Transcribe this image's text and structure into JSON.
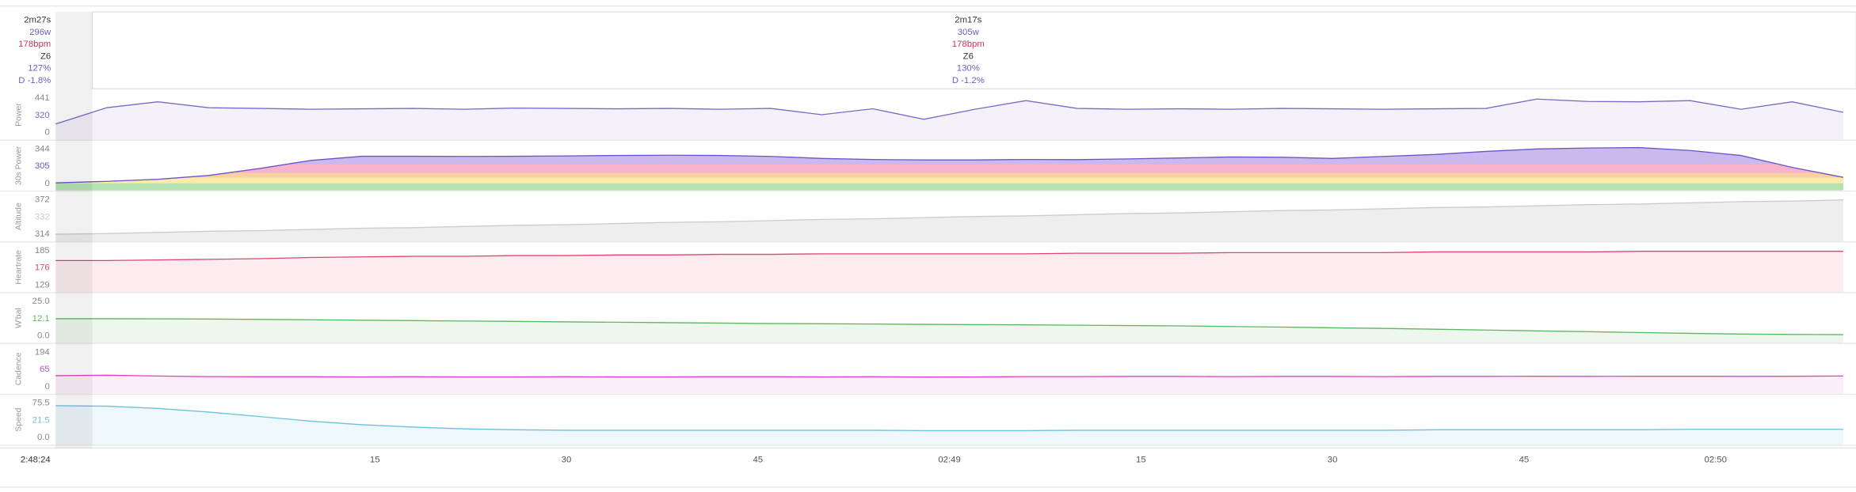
{
  "header": {
    "left": [
      "2m27s",
      "296w",
      "178bpm",
      "Z6",
      "127%",
      "D -1.8%"
    ],
    "center": [
      "2m17s",
      "305w",
      "178bpm",
      "Z6",
      "130%",
      "D -1.2%"
    ],
    "colors": [
      "#333333",
      "#6b5fc0",
      "#d0325a",
      "#333333",
      "#6b5fc0",
      "#6b5fc0"
    ]
  },
  "chart_data": {
    "type": "area",
    "start_label": "2:48:24",
    "x": [
      -10,
      -6,
      -2,
      2,
      6,
      10,
      14,
      18,
      22,
      26,
      30,
      34,
      38,
      42,
      46,
      50,
      54,
      58,
      62,
      66,
      70,
      74,
      78,
      82,
      86,
      90,
      94,
      98,
      102,
      106,
      110,
      114,
      118,
      122,
      126,
      130
    ],
    "xlim": [
      -10,
      131
    ],
    "xticks": [
      15,
      30,
      45,
      {
        "value": 60,
        "label": "02:49"
      },
      {
        "value": 75,
        "label": "15"
      },
      {
        "value": 90,
        "label": "30"
      },
      {
        "value": 105,
        "label": "45"
      },
      {
        "value": 120,
        "label": "02:50"
      }
    ],
    "tracks": [
      {
        "name": "Power",
        "color": "#7b68c8",
        "fill": "#f4f1fb",
        "ylim": [
          0,
          441
        ],
        "yticks": [
          0,
          441
        ],
        "current": 320,
        "values": [
          110,
          320,
          395,
          320,
          310,
          300,
          305,
          310,
          300,
          315,
          310,
          305,
          310,
          300,
          310,
          230,
          305,
          170,
          300,
          410,
          310,
          300,
          305,
          300,
          310,
          305,
          300,
          305,
          310,
          430,
          400,
          395,
          410,
          300,
          395,
          260
        ]
      },
      {
        "name": "30s Power",
        "color": "#6a55c8",
        "fill": "#cbb8ee",
        "ylim": [
          0,
          344
        ],
        "yticks": [
          0,
          344
        ],
        "current": 305,
        "zones": [
          "#b5e3b0",
          "#fde9a8",
          "#fbd0a0",
          "#f5b4cc"
        ],
        "values": [
          5,
          20,
          40,
          80,
          150,
          230,
          272,
          272,
          270,
          272,
          275,
          280,
          282,
          280,
          270,
          250,
          240,
          235,
          235,
          240,
          238,
          245,
          255,
          265,
          262,
          250,
          270,
          290,
          320,
          345,
          355,
          360,
          330,
          280,
          160,
          60
        ]
      },
      {
        "name": "Altitude",
        "color": "#cccccc",
        "fill": "#eeeeee",
        "ylim": [
          314,
          372
        ],
        "yticks": [
          314,
          372
        ],
        "current": 332,
        "values": [
          314,
          315,
          317,
          319,
          320,
          322,
          324,
          325,
          327,
          329,
          330,
          332,
          334,
          335,
          337,
          339,
          340,
          342,
          344,
          345,
          347,
          349,
          350,
          352,
          354,
          355,
          357,
          359,
          360,
          362,
          364,
          365,
          367,
          369,
          370,
          372
        ]
      },
      {
        "name": "Heartrate",
        "color": "#e0456e",
        "fill": "#fcecf0",
        "ylim": [
          129,
          185
        ],
        "yticks": [
          129,
          185
        ],
        "current": 176,
        "values": [
          169,
          169,
          170,
          171,
          172,
          174,
          175,
          176,
          176,
          177,
          177,
          178,
          178,
          179,
          179,
          180,
          180,
          180,
          180,
          180,
          181,
          181,
          181,
          182,
          182,
          182,
          182,
          183,
          183,
          183,
          183,
          184,
          184,
          184,
          184,
          184
        ]
      },
      {
        "name": "W'bal",
        "color": "#5cb85c",
        "fill": "#eef7ee",
        "ylim": [
          0,
          25
        ],
        "yticks": [
          {
            "value": 0,
            "label": "0.0"
          },
          {
            "value": 25,
            "label": "25.0"
          }
        ],
        "current": 12.1,
        "values": [
          12.5,
          12.5,
          12.4,
          12.2,
          12.0,
          11.7,
          11.4,
          11.1,
          10.8,
          10.5,
          10.2,
          9.9,
          9.6,
          9.3,
          9.0,
          8.8,
          8.6,
          8.4,
          8.2,
          8.0,
          7.8,
          7.5,
          7.2,
          6.8,
          6.4,
          5.9,
          5.4,
          4.8,
          4.2,
          3.6,
          3.0,
          2.4,
          1.8,
          1.3,
          1.0,
          0.9
        ]
      },
      {
        "name": "Cadence",
        "color": "#e040c8",
        "fill": "#fdeefb",
        "ylim": [
          0,
          194
        ],
        "yticks": [
          0,
          194
        ],
        "current": 65,
        "values": [
          62,
          65,
          60,
          57,
          56,
          56,
          55,
          56,
          55,
          55,
          56,
          55,
          55,
          56,
          56,
          55,
          56,
          54,
          55,
          57,
          57,
          58,
          58,
          57,
          58,
          58,
          57,
          58,
          58,
          59,
          58,
          59,
          59,
          58,
          59,
          60
        ]
      },
      {
        "name": "Speed",
        "color": "#6cc0e0",
        "fill": "#eef7fc",
        "ylim": [
          0,
          75.5
        ],
        "yticks": [
          {
            "value": 0,
            "label": "0.0"
          },
          75.5
        ],
        "current": 21.5,
        "values": [
          70,
          69,
          64,
          56,
          46,
          36,
          28,
          23,
          19,
          17,
          16,
          16,
          16,
          16,
          16,
          16,
          16,
          15,
          15,
          15,
          16,
          16,
          16,
          16,
          16,
          16,
          16,
          17,
          17,
          17,
          17,
          17,
          18,
          18,
          18,
          18
        ]
      }
    ]
  }
}
